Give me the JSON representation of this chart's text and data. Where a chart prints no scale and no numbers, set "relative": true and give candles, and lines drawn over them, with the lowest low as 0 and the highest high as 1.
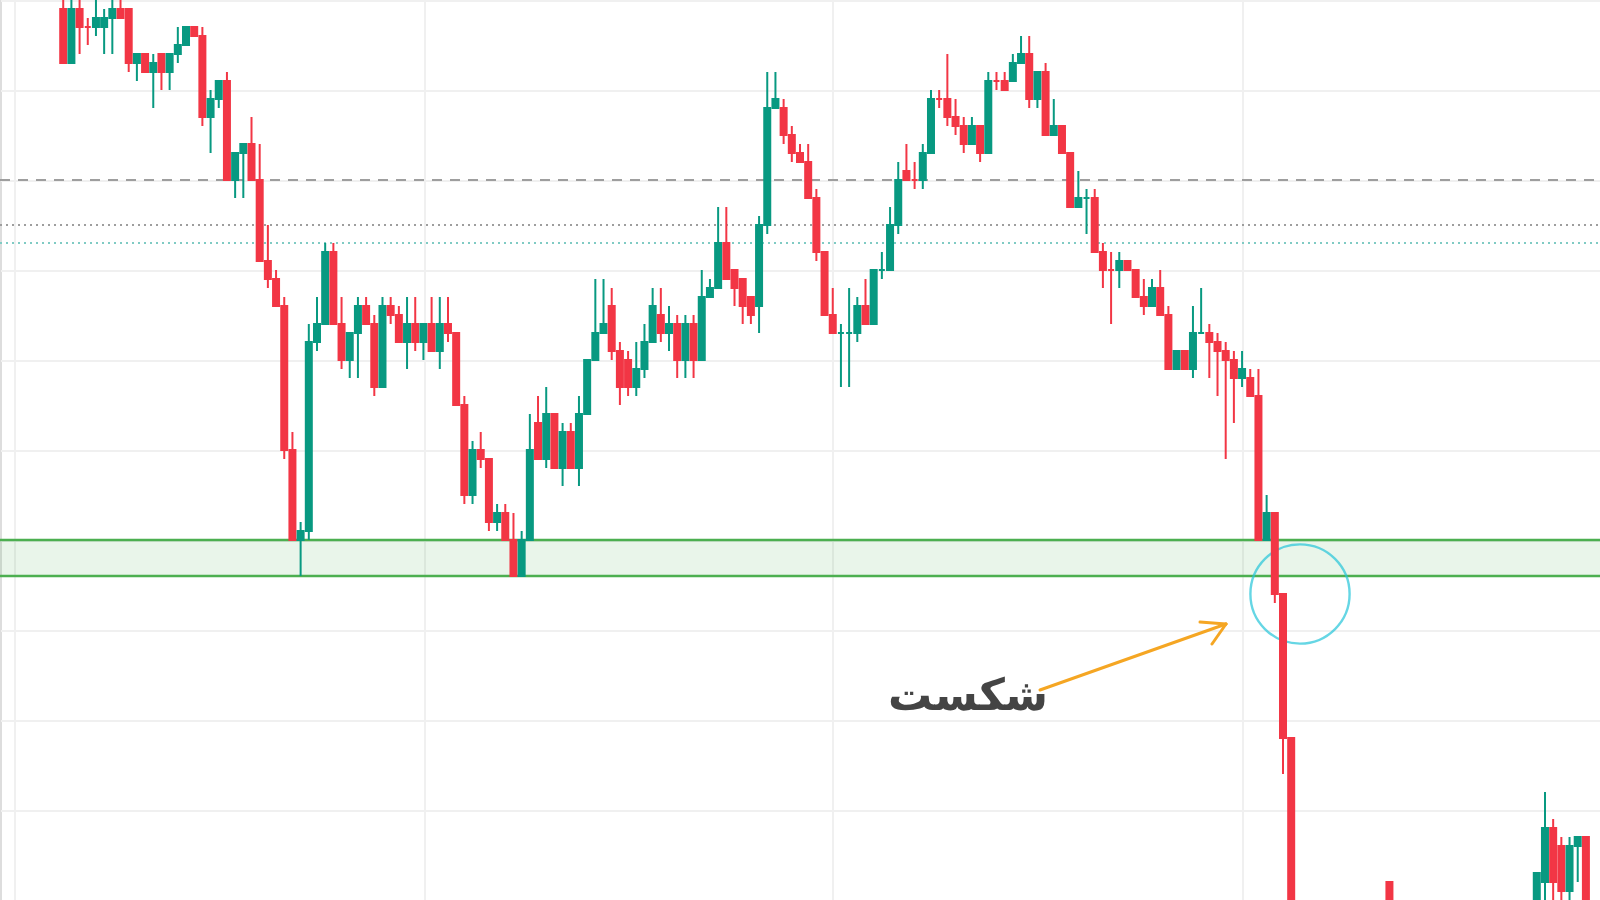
{
  "chart_data": {
    "type": "candlestick",
    "relative": true,
    "grid": true,
    "categories": [
      null,
      null,
      null,
      null,
      null,
      null,
      null,
      null,
      null,
      null,
      null,
      null,
      null,
      null,
      null,
      null,
      null,
      null,
      null,
      null,
      null,
      null,
      null,
      null,
      null,
      null,
      null,
      null,
      null,
      null,
      null,
      null,
      null,
      null,
      null,
      null,
      null,
      null,
      null,
      null,
      null,
      null,
      null,
      null,
      null,
      null,
      null,
      null,
      null,
      null,
      null,
      null,
      null,
      null,
      null,
      null,
      null,
      null,
      null,
      null,
      null,
      null,
      null,
      null,
      null,
      null,
      null,
      null,
      null,
      null,
      null,
      null,
      null,
      null,
      null,
      null,
      null,
      null,
      null,
      null,
      null,
      null,
      null,
      null,
      null,
      null,
      null,
      null,
      null,
      null,
      null,
      null,
      null,
      null,
      null,
      null,
      null,
      null,
      null,
      null,
      null,
      null,
      null,
      null,
      null,
      null,
      null,
      null,
      null,
      null,
      null,
      null,
      null,
      null,
      null,
      null,
      null,
      null,
      null,
      null,
      null,
      null,
      null,
      null,
      null,
      null,
      null,
      null,
      null,
      null,
      null,
      null,
      null,
      null,
      null,
      null,
      null,
      null,
      null,
      null,
      null,
      null,
      null,
      null,
      null,
      null,
      null,
      null,
      null,
      null,
      null,
      null,
      null,
      null,
      null,
      null,
      null,
      null,
      null,
      null,
      null,
      null,
      null,
      null,
      null,
      null,
      null,
      null,
      null,
      null,
      null,
      null,
      null,
      null,
      null,
      null,
      null,
      null,
      null,
      null,
      null,
      null,
      null,
      null,
      null,
      null,
      null,
      null,
      null,
      null,
      null,
      null,
      null
    ],
    "ohlc": [
      null,
      null,
      null,
      null,
      null,
      null,
      [
        0.99,
        1.0,
        0.93,
        0.93
      ],
      [
        0.93,
        1.0,
        0.93,
        0.99
      ],
      [
        0.99,
        1.0,
        0.94,
        0.97
      ],
      [
        0.97,
        0.98,
        0.95,
        0.97
      ],
      [
        0.97,
        1.0,
        0.96,
        0.98
      ],
      [
        0.97,
        0.99,
        0.94,
        0.98
      ],
      [
        0.98,
        1.0,
        0.94,
        0.99
      ],
      [
        0.99,
        1.0,
        0.98,
        0.98
      ],
      [
        0.99,
        0.99,
        0.92,
        0.93
      ],
      [
        0.93,
        0.94,
        0.91,
        0.94
      ],
      [
        0.94,
        0.94,
        0.92,
        0.92
      ],
      [
        0.92,
        0.94,
        0.88,
        0.93
      ],
      [
        0.94,
        0.94,
        0.9,
        0.92
      ],
      [
        0.92,
        0.94,
        0.9,
        0.94
      ],
      [
        0.94,
        0.97,
        0.93,
        0.95
      ],
      [
        0.95,
        0.97,
        0.95,
        0.97
      ],
      [
        0.97,
        0.97,
        0.96,
        0.96
      ],
      [
        0.96,
        0.97,
        0.86,
        0.87
      ],
      [
        0.87,
        0.9,
        0.83,
        0.89
      ],
      [
        0.89,
        0.91,
        0.88,
        0.91
      ],
      [
        0.91,
        0.92,
        0.8,
        0.8
      ],
      [
        0.8,
        0.83,
        0.78,
        0.83
      ],
      [
        0.83,
        0.84,
        0.78,
        0.84
      ],
      [
        0.84,
        0.87,
        0.8,
        0.8
      ],
      [
        0.8,
        0.84,
        0.71,
        0.71
      ],
      [
        0.71,
        0.75,
        0.68,
        0.69
      ],
      [
        0.69,
        0.7,
        0.66,
        0.66
      ],
      [
        0.66,
        0.67,
        0.49,
        0.5
      ],
      [
        0.5,
        0.52,
        0.4,
        0.4
      ],
      [
        0.4,
        0.42,
        0.36,
        0.41
      ],
      [
        0.41,
        0.64,
        0.4,
        0.62
      ],
      [
        0.62,
        0.67,
        0.61,
        0.64
      ],
      [
        0.64,
        0.73,
        0.64,
        0.72
      ],
      [
        0.72,
        0.73,
        0.64,
        0.64
      ],
      [
        0.64,
        0.67,
        0.59,
        0.6
      ],
      [
        0.6,
        0.63,
        0.58,
        0.63
      ],
      [
        0.63,
        0.67,
        0.58,
        0.66
      ],
      [
        0.66,
        0.67,
        0.64,
        0.64
      ],
      [
        0.64,
        0.65,
        0.56,
        0.57
      ],
      [
        0.57,
        0.67,
        0.57,
        0.66
      ],
      [
        0.66,
        0.67,
        0.64,
        0.65
      ],
      [
        0.65,
        0.66,
        0.62,
        0.62
      ],
      [
        0.62,
        0.67,
        0.59,
        0.64
      ],
      [
        0.64,
        0.67,
        0.61,
        0.62
      ],
      [
        0.62,
        0.64,
        0.6,
        0.64
      ],
      [
        0.64,
        0.67,
        0.61,
        0.61
      ],
      [
        0.61,
        0.67,
        0.59,
        0.64
      ],
      [
        0.64,
        0.67,
        0.62,
        0.63
      ],
      [
        0.63,
        0.63,
        0.55,
        0.55
      ],
      [
        0.55,
        0.56,
        0.44,
        0.45
      ],
      [
        0.45,
        0.51,
        0.44,
        0.5
      ],
      [
        0.5,
        0.52,
        0.48,
        0.49
      ],
      [
        0.49,
        0.49,
        0.41,
        0.42
      ],
      [
        0.42,
        0.44,
        0.41,
        0.43
      ],
      [
        0.43,
        0.44,
        0.4,
        0.4
      ],
      [
        0.4,
        0.43,
        0.36,
        0.36
      ],
      [
        0.36,
        0.41,
        0.36,
        0.4
      ],
      [
        0.4,
        0.54,
        0.4,
        0.5
      ],
      [
        0.53,
        0.56,
        0.49,
        0.49
      ],
      [
        0.49,
        0.57,
        0.48,
        0.54
      ],
      [
        0.54,
        0.54,
        0.48,
        0.48
      ],
      [
        0.48,
        0.53,
        0.46,
        0.52
      ],
      [
        0.52,
        0.53,
        0.48,
        0.48
      ],
      [
        0.48,
        0.56,
        0.46,
        0.54
      ],
      [
        0.54,
        0.6,
        0.54,
        0.6
      ],
      [
        0.6,
        0.69,
        0.6,
        0.63
      ],
      [
        0.63,
        0.69,
        0.63,
        0.64
      ],
      [
        0.66,
        0.68,
        0.6,
        0.61
      ],
      [
        0.61,
        0.62,
        0.55,
        0.57
      ],
      [
        0.6,
        0.61,
        0.56,
        0.57
      ],
      [
        0.57,
        0.62,
        0.56,
        0.59
      ],
      [
        0.59,
        0.64,
        0.58,
        0.62
      ],
      [
        0.62,
        0.68,
        0.62,
        0.66
      ],
      [
        0.65,
        0.68,
        0.62,
        0.63
      ],
      [
        0.63,
        0.66,
        0.61,
        0.64
      ],
      [
        0.64,
        0.65,
        0.58,
        0.6
      ],
      [
        0.6,
        0.65,
        0.58,
        0.64
      ],
      [
        0.64,
        0.65,
        0.58,
        0.6
      ],
      [
        0.6,
        0.7,
        0.6,
        0.67
      ],
      [
        0.67,
        0.69,
        0.67,
        0.68
      ],
      [
        0.68,
        0.77,
        0.68,
        0.73
      ],
      [
        0.73,
        0.77,
        0.69,
        0.69
      ],
      [
        0.7,
        0.7,
        0.66,
        0.68
      ],
      [
        0.69,
        0.69,
        0.64,
        0.66
      ],
      [
        0.67,
        0.67,
        0.64,
        0.65
      ],
      [
        0.66,
        0.76,
        0.63,
        0.75
      ],
      [
        0.75,
        0.92,
        0.74,
        0.88
      ],
      [
        0.88,
        0.92,
        0.88,
        0.89
      ],
      [
        0.88,
        0.89,
        0.84,
        0.85
      ],
      [
        0.85,
        0.86,
        0.82,
        0.83
      ],
      [
        0.83,
        0.84,
        0.82,
        0.82
      ],
      [
        0.82,
        0.84,
        0.78,
        0.78
      ],
      [
        0.78,
        0.79,
        0.71,
        0.72
      ],
      [
        0.72,
        0.72,
        0.65,
        0.65
      ],
      [
        0.65,
        0.68,
        0.63,
        0.63
      ],
      [
        0.63,
        0.64,
        0.57,
        0.63
      ],
      [
        0.63,
        0.68,
        0.57,
        0.63
      ],
      [
        0.63,
        0.67,
        0.62,
        0.66
      ],
      [
        0.66,
        0.69,
        0.64,
        0.64
      ],
      [
        0.64,
        0.7,
        0.64,
        0.7
      ],
      [
        0.7,
        0.72,
        0.69,
        0.7
      ],
      [
        0.7,
        0.77,
        0.7,
        0.75
      ],
      [
        0.75,
        0.82,
        0.74,
        0.8
      ],
      [
        0.81,
        0.84,
        0.8,
        0.8
      ],
      [
        0.8,
        0.82,
        0.79,
        0.8
      ],
      [
        0.8,
        0.84,
        0.79,
        0.83
      ],
      [
        0.83,
        0.9,
        0.83,
        0.89
      ],
      [
        0.89,
        0.9,
        0.88,
        0.89
      ],
      [
        0.89,
        0.94,
        0.86,
        0.87
      ],
      [
        0.87,
        0.89,
        0.85,
        0.86
      ],
      [
        0.86,
        0.87,
        0.83,
        0.84
      ],
      [
        0.84,
        0.87,
        0.84,
        0.86
      ],
      [
        0.86,
        0.86,
        0.82,
        0.83
      ],
      [
        0.83,
        0.92,
        0.83,
        0.91
      ],
      [
        0.91,
        0.92,
        0.9,
        0.91
      ],
      [
        0.91,
        0.92,
        0.9,
        0.9
      ],
      [
        0.91,
        0.94,
        0.91,
        0.93
      ],
      [
        0.93,
        0.96,
        0.93,
        0.94
      ],
      [
        0.94,
        0.96,
        0.88,
        0.89
      ],
      [
        0.89,
        0.92,
        0.88,
        0.92
      ],
      [
        0.92,
        0.93,
        0.85,
        0.85
      ],
      [
        0.85,
        0.89,
        0.85,
        0.86
      ],
      [
        0.86,
        0.86,
        0.83,
        0.83
      ],
      [
        0.83,
        0.83,
        0.77,
        0.77
      ],
      [
        0.77,
        0.81,
        0.77,
        0.78
      ],
      [
        0.78,
        0.79,
        0.74,
        0.78
      ],
      [
        0.78,
        0.79,
        0.72,
        0.72
      ],
      [
        0.72,
        0.73,
        0.68,
        0.7
      ],
      [
        0.7,
        0.72,
        0.64,
        0.7
      ],
      [
        0.7,
        0.72,
        0.68,
        0.71
      ],
      [
        0.71,
        0.71,
        0.7,
        0.7
      ],
      [
        0.7,
        0.7,
        0.67,
        0.67
      ],
      [
        0.67,
        0.69,
        0.65,
        0.66
      ],
      [
        0.66,
        0.69,
        0.66,
        0.68
      ],
      [
        0.68,
        0.7,
        0.65,
        0.65
      ],
      [
        0.65,
        0.66,
        0.59,
        0.59
      ],
      [
        0.59,
        0.61,
        0.59,
        0.61
      ],
      [
        0.61,
        0.61,
        0.59,
        0.59
      ],
      [
        0.59,
        0.66,
        0.58,
        0.63
      ],
      [
        0.63,
        0.68,
        0.63,
        0.63
      ],
      [
        0.63,
        0.64,
        0.58,
        0.62
      ],
      [
        0.62,
        0.63,
        0.56,
        0.61
      ],
      [
        0.61,
        0.62,
        0.49,
        0.6
      ],
      [
        0.6,
        0.61,
        0.53,
        0.58
      ],
      [
        0.58,
        0.61,
        0.57,
        0.59
      ],
      [
        0.58,
        0.59,
        0.56,
        0.56
      ],
      [
        0.56,
        0.59,
        0.4,
        0.4
      ],
      [
        0.4,
        0.45,
        0.4,
        0.43
      ],
      [
        0.43,
        0.43,
        0.33,
        0.34
      ],
      [
        0.34,
        0.34,
        0.14,
        0.18
      ],
      [
        0.18,
        0.18,
        0,
        0
      ],
      null,
      null,
      null,
      null,
      null,
      null,
      null,
      null,
      null,
      null,
      null,
      [
        0.02,
        0.02,
        0,
        0
      ],
      null,
      null,
      null,
      null,
      null,
      null,
      null,
      null,
      null,
      null,
      null,
      null,
      null,
      null,
      null,
      null,
      null,
      [
        0,
        0.03,
        0,
        0.03
      ],
      [
        0.02,
        0.12,
        0,
        0.08
      ],
      [
        0.08,
        0.09,
        0,
        0.02
      ],
      [
        0.06,
        0.07,
        0,
        0.01
      ],
      [
        0.01,
        0.07,
        0,
        0.06
      ],
      [
        0.06,
        0.07,
        0.02,
        0.07
      ],
      [
        0.07,
        0.07,
        0,
        0
      ]
    ],
    "colors": [
      null,
      null,
      null,
      null,
      null,
      null,
      "#f23645",
      "#089981",
      "#f23645",
      "#f23645",
      "#089981",
      "#089981",
      "#089981",
      "#f23645",
      "#f23645",
      "#089981",
      "#f23645",
      "#089981",
      "#f23645",
      "#089981",
      "#089981",
      "#089981",
      "#f23645",
      "#f23645",
      "#089981",
      "#089981",
      "#f23645",
      "#089981",
      "#089981",
      "#f23645",
      "#f23645",
      "#f23645",
      "#f23645",
      "#f23645",
      "#f23645",
      "#089981",
      "#089981",
      "#089981",
      "#089981",
      "#f23645",
      "#f23645",
      "#089981",
      "#089981",
      "#f23645",
      "#f23645",
      "#089981",
      "#f23645",
      "#f23645",
      "#089981",
      "#f23645",
      "#089981",
      "#f23645",
      "#089981",
      "#f23645",
      "#f23645",
      "#f23645",
      "#089981",
      "#f23645",
      "#f23645",
      "#089981",
      "#f23645",
      "#f23645",
      "#089981",
      "#089981",
      "#f23645",
      "#089981",
      "#f23645",
      "#089981",
      "#f23645",
      "#089981",
      "#089981",
      "#089981",
      "#089981",
      "#f23645",
      "#f23645",
      "#f23645",
      "#089981",
      "#089981",
      "#089981",
      "#f23645",
      "#089981",
      "#f23645",
      "#089981",
      "#f23645",
      "#089981",
      "#089981",
      "#089981",
      "#f23645",
      "#f23645",
      "#f23645",
      "#f23645",
      "#089981",
      "#089981",
      "#089981",
      "#f23645",
      "#f23645",
      "#f23645",
      "#f23645",
      "#f23645",
      "#f23645",
      "#f23645",
      "#089981",
      "#089981",
      "#089981",
      "#f23645",
      "#089981",
      "#089981",
      "#089981",
      "#089981",
      "#f23645",
      "#f23645",
      "#089981",
      "#089981",
      "#f23645",
      "#f23645",
      "#f23645",
      "#f23645",
      "#089981",
      "#f23645",
      "#089981",
      "#f23645",
      "#f23645",
      "#089981",
      "#089981",
      "#f23645",
      "#089981",
      "#f23645",
      "#089981",
      "#f23645",
      "#f23645",
      "#089981",
      "#089981",
      "#f23645",
      "#f23645",
      "#f23645",
      "#089981",
      "#f23645",
      "#f23645",
      "#f23645",
      "#089981",
      "#f23645",
      "#f23645",
      "#089981",
      "#f23645",
      "#089981",
      "#089981",
      "#f23645",
      "#f23645",
      "#f23645",
      "#f23645",
      "#089981",
      "#f23645",
      "#f23645",
      "#089981",
      "#f23645",
      "#f23645",
      "#f23645",
      null,
      null,
      null,
      null,
      null,
      null,
      null,
      null,
      null,
      null,
      null,
      "#f23645",
      null,
      null,
      null,
      null,
      null,
      null,
      null,
      null,
      null,
      null,
      null,
      null,
      null,
      null,
      null,
      null,
      null,
      "#089981",
      "#089981",
      "#f23645",
      "#f23645",
      "#089981",
      "#089981",
      "#f23645"
    ],
    "bands": [
      {
        "axis": "y",
        "from": 0.36,
        "to": 0.4,
        "color": "#4caf50"
      }
    ],
    "ref_lines": [
      {
        "axis": "y",
        "value": 0.8,
        "line_style": "dashed",
        "color": "#9e9e9e"
      },
      {
        "axis": "y",
        "value": 0.75,
        "line_style": "dotted",
        "color": "#9e9e9e"
      },
      {
        "axis": "y",
        "value": 0.73,
        "line_style": "dotted",
        "color": "#80cbc4"
      }
    ],
    "annotations": [
      "شکست"
    ]
  }
}
